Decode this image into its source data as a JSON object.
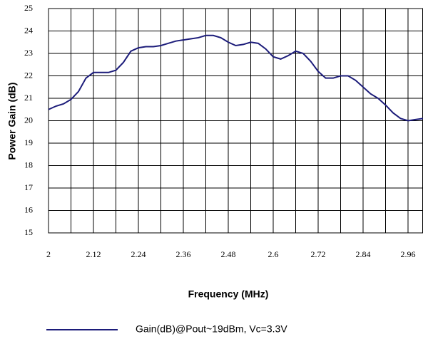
{
  "chart_data": {
    "type": "line",
    "xlabel": "Frequency (MHz)",
    "ylabel": "Power Gain (dB)",
    "x": [
      2.0,
      2.02,
      2.04,
      2.06,
      2.08,
      2.1,
      2.12,
      2.14,
      2.16,
      2.18,
      2.2,
      2.22,
      2.24,
      2.26,
      2.28,
      2.3,
      2.32,
      2.34,
      2.36,
      2.38,
      2.4,
      2.42,
      2.44,
      2.46,
      2.48,
      2.5,
      2.52,
      2.54,
      2.56,
      2.58,
      2.6,
      2.62,
      2.64,
      2.66,
      2.68,
      2.7,
      2.72,
      2.74,
      2.76,
      2.78,
      2.8,
      2.82,
      2.84,
      2.86,
      2.88,
      2.9,
      2.92,
      2.94,
      2.96,
      2.98,
      3.0
    ],
    "series": [
      {
        "name": "Gain(dB)@Pout~19dBm, Vc=3.3V",
        "color": "#1c1c7a",
        "values": [
          20.5,
          20.65,
          20.75,
          20.95,
          21.3,
          21.9,
          22.15,
          22.15,
          22.15,
          22.25,
          22.6,
          23.1,
          23.25,
          23.3,
          23.3,
          23.35,
          23.45,
          23.55,
          23.6,
          23.65,
          23.7,
          23.8,
          23.8,
          23.7,
          23.5,
          23.35,
          23.4,
          23.5,
          23.45,
          23.2,
          22.85,
          22.75,
          22.9,
          23.1,
          23.0,
          22.65,
          22.2,
          21.9,
          21.9,
          22.0,
          22.0,
          21.8,
          21.5,
          21.2,
          21.0,
          20.7,
          20.35,
          20.1,
          20.0,
          20.05,
          20.1
        ]
      }
    ],
    "xlim": [
      2,
      3.0
    ],
    "xticks": [
      2,
      2.12,
      2.24,
      2.36,
      2.48,
      2.6,
      2.72,
      2.84,
      2.96
    ],
    "ylim": [
      15,
      25
    ],
    "yticks": [
      15,
      16,
      17,
      18,
      19,
      20,
      21,
      22,
      23,
      24,
      25
    ],
    "grid": true,
    "legend": "bottom"
  }
}
